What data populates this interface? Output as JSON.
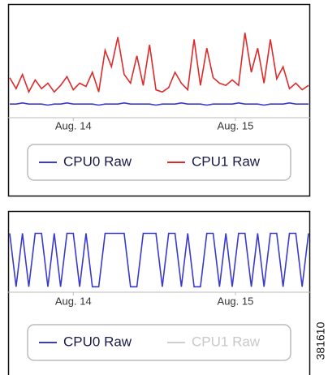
{
  "figure_label": "381610",
  "chart_data": [
    {
      "type": "line",
      "x": [
        0,
        1,
        2,
        3,
        4,
        5,
        6,
        7,
        8,
        9,
        10,
        11,
        12,
        13,
        14,
        15,
        16,
        17,
        18,
        19,
        20,
        21,
        22,
        23,
        24,
        25,
        26,
        27,
        28,
        29,
        30,
        31,
        32,
        33,
        34,
        35,
        36,
        37,
        38,
        39,
        40,
        41,
        42,
        43,
        44,
        45,
        46,
        47
      ],
      "xlim": [
        0,
        47
      ],
      "xticks": [
        {
          "value": 10,
          "label": "Aug. 14"
        },
        {
          "value": 35.5,
          "label": "Aug. 15"
        }
      ],
      "ylim": [
        0,
        100
      ],
      "series": [
        {
          "name": "CPU0 Raw",
          "color": "#3a3acc",
          "visible": true,
          "values": [
            11,
            11,
            12,
            11,
            11,
            11,
            10,
            11,
            11,
            12,
            11,
            11,
            11,
            11,
            10,
            11,
            11,
            11,
            12,
            11,
            11,
            11,
            11,
            10,
            11,
            11,
            11,
            12,
            11,
            11,
            11,
            10,
            11,
            11,
            11,
            11,
            12,
            11,
            11,
            11,
            10,
            11,
            11,
            11,
            12,
            11,
            11,
            11
          ]
        },
        {
          "name": "CPU1 Raw",
          "color": "#dd2a2a",
          "visible": true,
          "values": [
            35,
            25,
            38,
            22,
            33,
            25,
            30,
            22,
            28,
            36,
            24,
            30,
            27,
            40,
            22,
            60,
            45,
            72,
            38,
            30,
            55,
            28,
            65,
            24,
            22,
            26,
            40,
            30,
            24,
            70,
            28,
            62,
            35,
            30,
            28,
            33,
            28,
            76,
            40,
            62,
            30,
            70,
            34,
            45,
            25,
            30,
            24,
            28
          ]
        }
      ]
    },
    {
      "type": "line",
      "x": [
        0,
        1,
        2,
        3,
        4,
        5,
        6,
        7,
        8,
        9,
        10,
        11,
        12,
        13,
        14,
        15,
        16,
        17,
        18,
        19,
        20,
        21,
        22,
        23,
        24,
        25,
        26,
        27,
        28,
        29,
        30,
        31,
        32,
        33,
        34,
        35,
        36,
        37,
        38,
        39,
        40,
        41,
        42,
        43,
        44,
        45,
        46,
        47
      ],
      "xlim": [
        0,
        47
      ],
      "xticks": [
        {
          "value": 10,
          "label": "Aug. 14"
        },
        {
          "value": 35.5,
          "label": "Aug. 15"
        }
      ],
      "ylim": [
        0,
        100
      ],
      "series": [
        {
          "name": "CPU0 Raw",
          "color": "#3a3acc",
          "visible": true,
          "values": [
            75,
            5,
            75,
            5,
            75,
            75,
            5,
            75,
            5,
            75,
            75,
            5,
            75,
            5,
            5,
            75,
            75,
            75,
            75,
            5,
            5,
            75,
            75,
            75,
            5,
            75,
            75,
            5,
            75,
            5,
            5,
            75,
            75,
            5,
            75,
            5,
            75,
            75,
            5,
            75,
            5,
            75,
            75,
            5,
            75,
            75,
            5,
            75
          ]
        },
        {
          "name": "CPU1 Raw",
          "color": "#dd2a2a",
          "visible": false
        }
      ]
    }
  ]
}
